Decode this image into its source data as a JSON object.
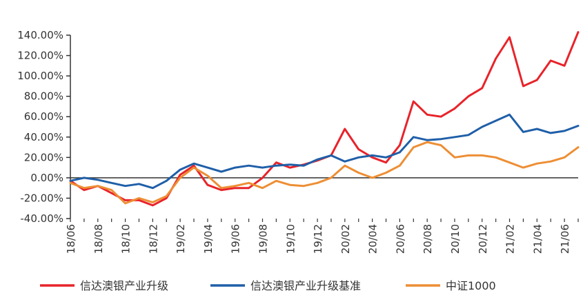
{
  "chart_data": {
    "type": "line",
    "title": "",
    "xlabel": "",
    "ylabel": "",
    "ylim": [
      -40,
      140
    ],
    "y_tick_values": [
      -40,
      -20,
      0,
      20,
      40,
      60,
      80,
      100,
      120,
      140
    ],
    "y_tick_labels": [
      "-40.00%",
      "-20.00%",
      "0.00%",
      "20.00%",
      "40.00%",
      "60.00%",
      "80.00%",
      "100.00%",
      "120.00%",
      "140.00%"
    ],
    "x_tick_labels": [
      "18/06",
      "18/08",
      "18/10",
      "18/12",
      "19/02",
      "19/04",
      "19/06",
      "19/08",
      "19/10",
      "19/12",
      "20/02",
      "20/04",
      "20/06",
      "20/08",
      "20/10",
      "20/12",
      "21/02",
      "21/04",
      "21/06"
    ],
    "x_range": [
      "18/06",
      "21/07"
    ],
    "grid": false,
    "legend_position": "bottom",
    "x": [
      "18/06",
      "18/07",
      "18/08",
      "18/09",
      "18/10",
      "18/11",
      "18/12",
      "19/01",
      "19/02",
      "19/03",
      "19/04",
      "19/05",
      "19/06",
      "19/07",
      "19/08",
      "19/09",
      "19/10",
      "19/11",
      "19/12",
      "20/01",
      "20/02",
      "20/03",
      "20/04",
      "20/05",
      "20/06",
      "20/07",
      "20/08",
      "20/09",
      "20/10",
      "20/11",
      "20/12",
      "21/01",
      "21/02",
      "21/03",
      "21/04",
      "21/05",
      "21/06",
      "21/07"
    ],
    "series": [
      {
        "name": "信达澳银产业升级",
        "color": "#e8232a",
        "values": [
          -3,
          -12,
          -8,
          -15,
          -22,
          -22,
          -27,
          -20,
          3,
          12,
          -7,
          -12,
          -10,
          -10,
          0,
          15,
          10,
          13,
          17,
          22,
          48,
          28,
          20,
          15,
          32,
          75,
          62,
          60,
          68,
          80,
          88,
          117,
          138,
          90,
          96,
          115,
          110,
          143
        ]
      },
      {
        "name": "信达澳银产业升级基准",
        "color": "#1f5fa8",
        "values": [
          -3,
          0,
          -2,
          -5,
          -8,
          -6,
          -10,
          -3,
          8,
          14,
          10,
          6,
          10,
          12,
          10,
          12,
          13,
          12,
          18,
          22,
          16,
          20,
          22,
          20,
          25,
          40,
          37,
          38,
          40,
          42,
          50,
          56,
          62,
          45,
          48,
          44,
          46,
          51
        ]
      },
      {
        "name": "中证1000",
        "color": "#ed8e34",
        "values": [
          -5,
          -10,
          -8,
          -12,
          -25,
          -20,
          -24,
          -18,
          0,
          10,
          2,
          -10,
          -8,
          -5,
          -10,
          -3,
          -7,
          -8,
          -5,
          0,
          12,
          5,
          0,
          5,
          12,
          30,
          35,
          32,
          20,
          22,
          22,
          20,
          15,
          10,
          14,
          16,
          20,
          30
        ]
      }
    ]
  }
}
